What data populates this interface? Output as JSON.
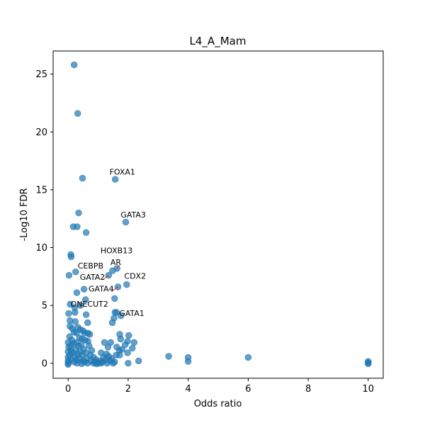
{
  "chart_data": {
    "type": "scatter",
    "title": "L4_A_Mam",
    "xlabel": "Odds ratio",
    "ylabel": "-Log10 FDR",
    "xlim": [
      -0.5,
      10.5
    ],
    "ylim": [
      -1.3,
      27.0
    ],
    "xticks": [
      0,
      2,
      4,
      6,
      8,
      10
    ],
    "yticks": [
      0,
      5,
      10,
      15,
      20,
      25
    ],
    "grid": false,
    "marker_color": "#1f77b4",
    "marker_alpha": 0.7,
    "annotation_arrow_color": "#ff0000",
    "points": [
      {
        "x": 0.2,
        "y": 25.8
      },
      {
        "x": 0.32,
        "y": 21.6
      },
      {
        "x": 0.48,
        "y": 16.0
      },
      {
        "x": 1.57,
        "y": 15.9
      },
      {
        "x": 0.35,
        "y": 13.0
      },
      {
        "x": 1.92,
        "y": 12.2
      },
      {
        "x": 0.17,
        "y": 11.8
      },
      {
        "x": 0.3,
        "y": 11.8
      },
      {
        "x": 0.6,
        "y": 11.3
      },
      {
        "x": 0.09,
        "y": 9.4
      },
      {
        "x": 0.1,
        "y": 9.2
      },
      {
        "x": 1.63,
        "y": 8.2
      },
      {
        "x": 1.48,
        "y": 8.0
      },
      {
        "x": 0.25,
        "y": 7.9
      },
      {
        "x": 0.03,
        "y": 7.6
      },
      {
        "x": 1.35,
        "y": 7.6
      },
      {
        "x": 1.95,
        "y": 6.8
      },
      {
        "x": 1.66,
        "y": 6.6
      },
      {
        "x": 0.53,
        "y": 6.4
      },
      {
        "x": 0.29,
        "y": 6.1
      },
      {
        "x": 1.55,
        "y": 5.6
      },
      {
        "x": 0.58,
        "y": 5.5
      },
      {
        "x": 0.07,
        "y": 5.1
      },
      {
        "x": 0.41,
        "y": 5.0
      },
      {
        "x": 0.22,
        "y": 4.8
      },
      {
        "x": 0.23,
        "y": 4.4
      },
      {
        "x": 1.56,
        "y": 4.4
      },
      {
        "x": 1.61,
        "y": 4.4
      },
      {
        "x": 0.02,
        "y": 4.3
      },
      {
        "x": 0.6,
        "y": 4.2
      },
      {
        "x": 1.76,
        "y": 4.1
      },
      {
        "x": 1.53,
        "y": 3.9
      },
      {
        "x": 0.06,
        "y": 3.7
      },
      {
        "x": 1.47,
        "y": 3.5
      },
      {
        "x": 0.65,
        "y": 3.5
      },
      {
        "x": 0.24,
        "y": 3.6
      },
      {
        "x": 0.06,
        "y": 3.2
      },
      {
        "x": 0.33,
        "y": 3.1
      },
      {
        "x": 0.14,
        "y": 3.0
      },
      {
        "x": 0.41,
        "y": 2.9
      },
      {
        "x": 0.5,
        "y": 2.8
      },
      {
        "x": 0.2,
        "y": 2.7
      },
      {
        "x": 0.28,
        "y": 2.6
      },
      {
        "x": 0.55,
        "y": 2.6
      },
      {
        "x": 0.66,
        "y": 2.6
      },
      {
        "x": 0.72,
        "y": 2.5
      },
      {
        "x": 1.72,
        "y": 2.5
      },
      {
        "x": 2.02,
        "y": 2.4
      },
      {
        "x": 0.05,
        "y": 2.3
      },
      {
        "x": 0.38,
        "y": 2.2
      },
      {
        "x": 0.46,
        "y": 2.1
      },
      {
        "x": 1.75,
        "y": 2.1
      },
      {
        "x": 0.12,
        "y": 2.0
      },
      {
        "x": 0.57,
        "y": 2.0
      },
      {
        "x": 0.66,
        "y": 1.9
      },
      {
        "x": 1.98,
        "y": 1.9
      },
      {
        "x": 0.0,
        "y": 1.8
      },
      {
        "x": 0.27,
        "y": 1.8
      },
      {
        "x": 1.21,
        "y": 1.8
      },
      {
        "x": 1.42,
        "y": 1.8
      },
      {
        "x": 2.2,
        "y": 1.8
      },
      {
        "x": 0.18,
        "y": 1.7
      },
      {
        "x": 0.44,
        "y": 1.6
      },
      {
        "x": 1.9,
        "y": 1.6
      },
      {
        "x": 0.08,
        "y": 1.5
      },
      {
        "x": 0.34,
        "y": 1.5
      },
      {
        "x": 0.7,
        "y": 1.5
      },
      {
        "x": 0.02,
        "y": 1.4
      },
      {
        "x": 1.33,
        "y": 1.4
      },
      {
        "x": 1.62,
        "y": 1.4
      },
      {
        "x": 2.14,
        "y": 1.3
      },
      {
        "x": 0.25,
        "y": 1.2
      },
      {
        "x": 0.52,
        "y": 1.2
      },
      {
        "x": 1.8,
        "y": 1.2
      },
      {
        "x": 0.1,
        "y": 1.1
      },
      {
        "x": 0.79,
        "y": 1.1
      },
      {
        "x": 1.71,
        "y": 1.1
      },
      {
        "x": 0.0,
        "y": 1.0
      },
      {
        "x": 0.4,
        "y": 1.0
      },
      {
        "x": 0.6,
        "y": 0.9
      },
      {
        "x": 1.1,
        "y": 0.9
      },
      {
        "x": 0.15,
        "y": 0.9
      },
      {
        "x": 1.98,
        "y": 0.9
      },
      {
        "x": 0.32,
        "y": 0.8
      },
      {
        "x": 1.28,
        "y": 0.8
      },
      {
        "x": 0.05,
        "y": 0.7
      },
      {
        "x": 0.47,
        "y": 0.7
      },
      {
        "x": 0.74,
        "y": 0.7
      },
      {
        "x": 1.6,
        "y": 0.7
      },
      {
        "x": 1.72,
        "y": 0.7
      },
      {
        "x": 3.35,
        "y": 0.6
      },
      {
        "x": 4.0,
        "y": 0.5
      },
      {
        "x": 6.0,
        "y": 0.5
      },
      {
        "x": 0.22,
        "y": 0.6
      },
      {
        "x": 1.35,
        "y": 0.6
      },
      {
        "x": 0.0,
        "y": 0.5
      },
      {
        "x": 0.85,
        "y": 0.5
      },
      {
        "x": 1.18,
        "y": 0.5
      },
      {
        "x": 0.38,
        "y": 0.4
      },
      {
        "x": 0.62,
        "y": 0.4
      },
      {
        "x": 1.45,
        "y": 0.4
      },
      {
        "x": 0.1,
        "y": 0.3
      },
      {
        "x": 0.93,
        "y": 0.3
      },
      {
        "x": 1.25,
        "y": 0.3
      },
      {
        "x": 0.28,
        "y": 0.3
      },
      {
        "x": 2.35,
        "y": 0.2
      },
      {
        "x": 4.0,
        "y": 0.15
      },
      {
        "x": 0.0,
        "y": 0.2
      },
      {
        "x": 0.5,
        "y": 0.2
      },
      {
        "x": 0.75,
        "y": 0.2
      },
      {
        "x": 1.05,
        "y": 0.2
      },
      {
        "x": 1.4,
        "y": 0.2
      },
      {
        "x": 0.2,
        "y": 0.1
      },
      {
        "x": 0.55,
        "y": 0.1
      },
      {
        "x": 0.9,
        "y": 0.1
      },
      {
        "x": 1.15,
        "y": 0.1
      },
      {
        "x": 1.55,
        "y": 0.1
      },
      {
        "x": 10.0,
        "y": 0.15
      },
      {
        "x": 10.0,
        "y": 0.05
      },
      {
        "x": 10.0,
        "y": -0.05
      },
      {
        "x": 0.0,
        "y": 0.0
      },
      {
        "x": 0.3,
        "y": 0.0
      },
      {
        "x": 0.65,
        "y": 0.0
      },
      {
        "x": 0.85,
        "y": 0.0
      },
      {
        "x": 1.0,
        "y": 0.0
      },
      {
        "x": 1.1,
        "y": 0.0
      },
      {
        "x": 1.3,
        "y": 0.0
      },
      {
        "x": 1.5,
        "y": 0.0
      },
      {
        "x": 2.0,
        "y": 0.0
      },
      {
        "x": 0.0,
        "y": -0.1
      },
      {
        "x": 0.45,
        "y": -0.05
      },
      {
        "x": 0.95,
        "y": -0.05
      }
    ],
    "annotations": [
      {
        "label": "FOXA1",
        "x": 1.57,
        "y": 15.9,
        "tx": 1.38,
        "ty": 16.3,
        "arrow": false
      },
      {
        "label": "GATA3",
        "x": 1.92,
        "y": 12.2,
        "tx": 1.75,
        "ty": 12.6,
        "arrow": false
      },
      {
        "label": "HOXB13",
        "x": 1.63,
        "y": 8.2,
        "tx": 1.08,
        "ty": 9.5,
        "arrow": false
      },
      {
        "label": "AR",
        "x": 1.63,
        "y": 8.2,
        "tx": 1.41,
        "ty": 8.5,
        "arrow": true
      },
      {
        "label": "CEBPB",
        "x": 0.25,
        "y": 7.9,
        "tx": 0.32,
        "ty": 8.2,
        "arrow": false
      },
      {
        "label": "CDX2",
        "x": 1.95,
        "y": 6.8,
        "tx": 1.87,
        "ty": 7.3,
        "arrow": false
      },
      {
        "label": "GATA2",
        "x": 1.35,
        "y": 7.6,
        "tx": 0.39,
        "ty": 7.2,
        "arrow": true
      },
      {
        "label": "GATA4",
        "x": 1.66,
        "y": 6.6,
        "tx": 0.68,
        "ty": 6.2,
        "arrow": true
      },
      {
        "label": "ONECUT2",
        "x": 0.6,
        "y": 5.5,
        "tx": 0.08,
        "ty": 4.9,
        "arrow": false
      },
      {
        "label": "GATA1",
        "x": 1.76,
        "y": 4.1,
        "tx": 1.7,
        "ty": 4.1,
        "arrow": false
      }
    ]
  }
}
